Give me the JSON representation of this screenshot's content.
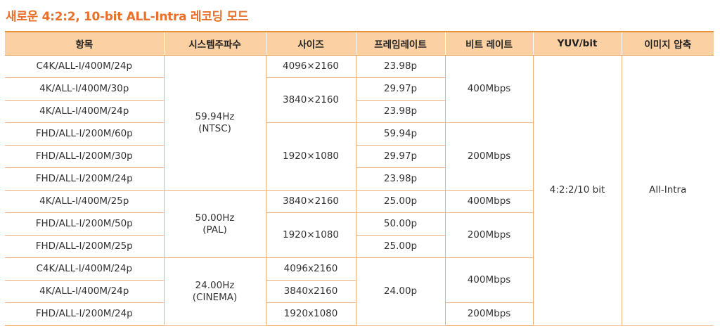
{
  "title": "새로운 4:2:2, 10-bit ALL-Intra 레코딩 모드",
  "headers": {
    "item": "항목",
    "system_freq": "시스템주파수",
    "size": "사이즈",
    "frame_rate": "프레임레이트",
    "bit_rate": "비트 레이트",
    "yuv_bit": "YUV/bit",
    "compression": "이미지 압축"
  },
  "items": [
    "C4K/ALL-I/400M/24p",
    "4K/ALL-I/400M/30p",
    "4K/ALL-I/400M/24p",
    "FHD/ALL-I/200M/60p",
    "FHD/ALL-I/200M/30p",
    "FHD/ALL-I/200M/24p",
    "4K/ALL-I/400M/25p",
    "FHD/ALL-I/200M/50p",
    "FHD/ALL-I/200M/25p",
    "C4K/ALL-I/400M/24p",
    "4K/ALL-I/400M/24p",
    "FHD/ALL-I/200M/24p"
  ],
  "system_freq": {
    "ntsc_value": "59.94Hz",
    "ntsc_label": "(NTSC)",
    "pal_value": "50.00Hz",
    "pal_label": "(PAL)",
    "cinema_value": "24.00Hz",
    "cinema_label": "(CINEMA)"
  },
  "sizes": {
    "s1": "4096×2160",
    "s2": "3840×2160",
    "s3": "1920×1080",
    "s4": "3840×2160",
    "s5": "1920×1080",
    "s6": "4096x2160",
    "s7": "3840x2160",
    "s8": "1920x1080"
  },
  "frame_rates": {
    "r1": "23.98p",
    "r2": "29.97p",
    "r3": "23.98p",
    "r4": "59.94p",
    "r5": "29.97p",
    "r6": "23.98p",
    "r7": "25.00p",
    "r8": "50.00p",
    "r9": "25.00p",
    "r10": "24.00p"
  },
  "bit_rates": {
    "b1": "400Mbps",
    "b2": "200Mbps",
    "b3": "400Mbps",
    "b4": "200Mbps",
    "b5": "400Mbps",
    "b6": "200Mbps"
  },
  "yuv_bit": "4:2:2/10 bit",
  "compression": "All-Intra",
  "colors": {
    "title": "#e8702a",
    "header_bg": "#fbd0a2",
    "border": "#f0b27a"
  }
}
